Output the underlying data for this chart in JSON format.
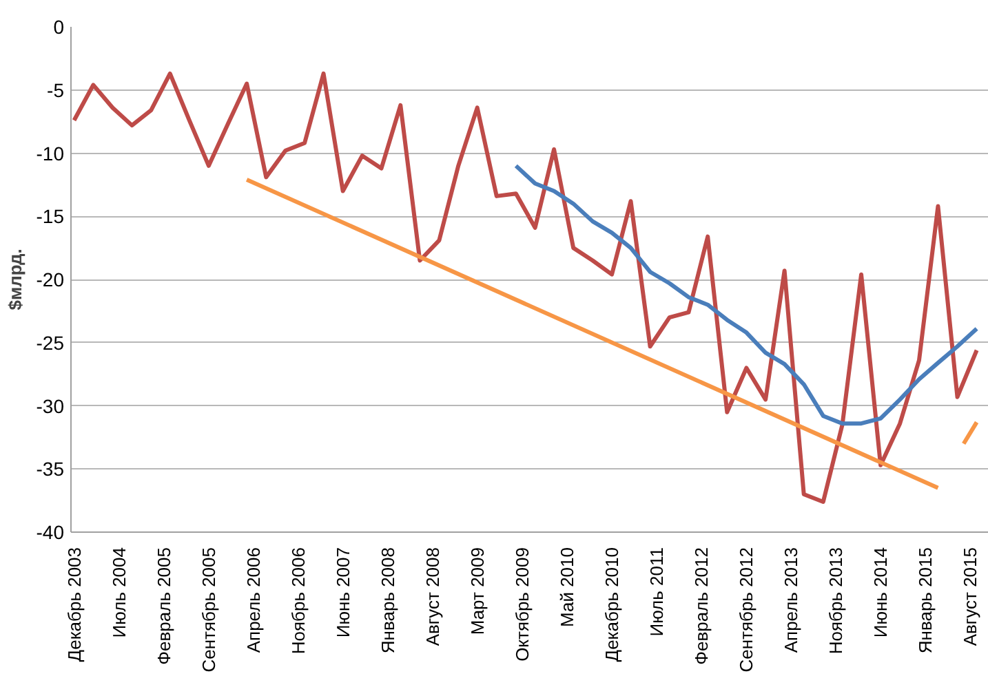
{
  "chart_data": {
    "type": "line",
    "ylabel": "$млрд.",
    "grid": "y",
    "marker": "none",
    "line_style": "solid",
    "ylim": [
      -40,
      0
    ],
    "yticks": [
      -40,
      -35,
      -30,
      -25,
      -20,
      -15,
      -10,
      -5,
      0
    ],
    "xlim": [
      "2003-11-16",
      "2015-10-28"
    ],
    "xticks": [
      {
        "value": "2003-12",
        "label": "Декабрь 2003"
      },
      {
        "value": "2004-07",
        "label": "Июль 2004"
      },
      {
        "value": "2005-02",
        "label": "Февраль 2005"
      },
      {
        "value": "2005-09",
        "label": "Сентябрь 2005"
      },
      {
        "value": "2006-04",
        "label": "Апрель 2006"
      },
      {
        "value": "2006-11",
        "label": "Ноябрь 2006"
      },
      {
        "value": "2007-06",
        "label": "Июнь 2007"
      },
      {
        "value": "2008-01",
        "label": "Январь 2008"
      },
      {
        "value": "2008-08",
        "label": "Август 2008"
      },
      {
        "value": "2009-03",
        "label": "Март 2009"
      },
      {
        "value": "2009-10",
        "label": "Октябрь 2009"
      },
      {
        "value": "2010-05",
        "label": "Май 2010"
      },
      {
        "value": "2010-12",
        "label": "Декабрь 2010"
      },
      {
        "value": "2011-07",
        "label": "Июль 2011"
      },
      {
        "value": "2012-02",
        "label": "Февраль 2012"
      },
      {
        "value": "2012-09",
        "label": "Сентябрь 2012"
      },
      {
        "value": "2013-04",
        "label": "Апрель 2013"
      },
      {
        "value": "2013-11",
        "label": "Ноябрь 2013"
      },
      {
        "value": "2014-06",
        "label": "Июнь 2014"
      },
      {
        "value": "2015-01",
        "label": "Январь 2015"
      },
      {
        "value": "2015-08",
        "label": "Август 2015"
      }
    ],
    "series": [
      {
        "color": "#be4b48",
        "x": [
          "2003-12",
          "2004-03",
          "2004-06",
          "2004-09",
          "2004-12",
          "2005-03",
          "2005-06",
          "2005-09",
          "2005-12",
          "2006-03",
          "2006-06",
          "2006-09",
          "2006-12",
          "2007-03",
          "2007-06",
          "2007-09",
          "2007-12",
          "2008-03",
          "2008-06",
          "2008-09",
          "2008-12",
          "2009-03",
          "2009-06",
          "2009-09",
          "2009-12",
          "2010-03",
          "2010-06",
          "2010-09",
          "2010-12",
          "2011-03",
          "2011-06",
          "2011-09",
          "2011-12",
          "2012-03",
          "2012-06",
          "2012-09",
          "2012-12",
          "2013-03",
          "2013-06",
          "2013-09",
          "2013-12",
          "2014-03",
          "2014-06",
          "2014-09",
          "2014-12",
          "2015-03",
          "2015-06",
          "2015-09"
        ],
        "values": [
          -7.4,
          -4.6,
          -6.4,
          -7.8,
          -6.6,
          -3.7,
          -7.4,
          -11.0,
          -7.7,
          -4.5,
          -11.9,
          -9.8,
          -9.2,
          -3.7,
          -13.0,
          -10.2,
          -11.2,
          -6.2,
          -18.5,
          -16.9,
          -11.0,
          -6.4,
          -13.4,
          -13.2,
          -15.9,
          -9.7,
          -17.5,
          -18.5,
          -19.6,
          -13.8,
          -25.3,
          -23.0,
          -22.6,
          -16.6,
          -30.5,
          -27.0,
          -29.5,
          -19.3,
          -37.0,
          -37.6,
          -31.5,
          -19.6,
          -34.7,
          -31.4,
          -26.4,
          -14.2,
          -29.3,
          -25.6
        ]
      },
      {
        "color": "#4a7ebb",
        "x": [
          "2009-09",
          "2009-12",
          "2010-03",
          "2010-06",
          "2010-09",
          "2010-12",
          "2011-03",
          "2011-06",
          "2011-09",
          "2011-12",
          "2012-03",
          "2012-06",
          "2012-09",
          "2012-12",
          "2013-03",
          "2013-06",
          "2013-09",
          "2013-12",
          "2014-03",
          "2014-06",
          "2014-09",
          "2014-12",
          "2015-03",
          "2015-06",
          "2015-09"
        ],
        "values": [
          -11.0,
          -12.4,
          -13.0,
          -14.0,
          -15.4,
          -16.3,
          -17.5,
          -19.4,
          -20.3,
          -21.4,
          -22.0,
          -23.2,
          -24.2,
          -25.8,
          -26.7,
          -28.3,
          -30.8,
          -31.4,
          -31.4,
          -31.0,
          -29.5,
          -27.9,
          -26.6,
          -25.3,
          -23.9
        ]
      },
      {
        "color": "#f79646",
        "x": [
          "2006-03",
          "2015-03"
        ],
        "values": [
          -12.1,
          -36.5
        ]
      },
      {
        "color": "#f79646",
        "x": [
          "2015-07",
          "2015-09"
        ],
        "values": [
          -33.0,
          -31.3
        ]
      }
    ]
  }
}
